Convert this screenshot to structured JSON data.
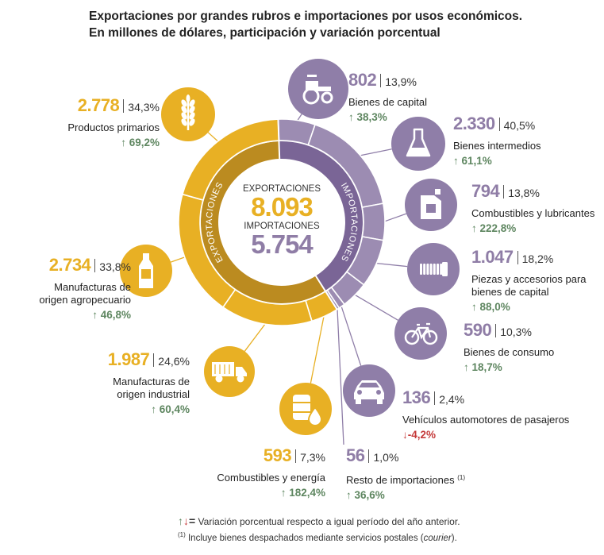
{
  "title_line1": "Exportaciones por grandes rubros e importaciones por usos económicos.",
  "title_line2": "En millones de dólares, participación y variación porcentual",
  "center": {
    "exp_label": "EXPORTACIONES",
    "exp_value": "8.093",
    "imp_label": "IMPORTACIONES",
    "imp_value": "5.754",
    "exp_ring": "EXPORTACIONES",
    "imp_ring": "IMPORTACIONES"
  },
  "colors": {
    "exports": "#e8b024",
    "exports_inner": "#bb8b20",
    "imports": "#9c8cb2",
    "imports_inner": "#7a6596",
    "icon_exp": "#e8b024",
    "icon_imp": "#8f7ea8",
    "up": "#5e8660",
    "down": "#c53a3a"
  },
  "chart_data": {
    "type": "pie",
    "title": "Exportaciones por grandes rubros e importaciones por usos económicos. En millones de dólares, participación y variación porcentual",
    "series": [
      {
        "name": "Exportaciones",
        "total": 8093,
        "items": [
          {
            "label": "Productos primarios",
            "value": 2778,
            "value_text": "2.778",
            "share_text": "34,3%",
            "variation_text": "69,2%",
            "direction": "up",
            "icon": "wheat-icon"
          },
          {
            "label": "Manufacturas de origen agropecuario",
            "value": 2734,
            "value_text": "2.734",
            "share_text": "33,8%",
            "variation_text": "46,8%",
            "direction": "up",
            "icon": "bottle-icon"
          },
          {
            "label": "Manufacturas de origen industrial",
            "value": 1987,
            "value_text": "1.987",
            "share_text": "24,6%",
            "variation_text": "60,4%",
            "direction": "up",
            "icon": "truck-icon"
          },
          {
            "label": "Combustibles y energía",
            "value": 593,
            "value_text": "593",
            "share_text": "7,3%",
            "variation_text": "182,4%",
            "direction": "up",
            "icon": "barrel-icon"
          }
        ]
      },
      {
        "name": "Importaciones",
        "total": 5754,
        "items": [
          {
            "label": "Bienes de capital",
            "value": 802,
            "value_text": "802",
            "share_text": "13,9%",
            "variation_text": "38,3%",
            "direction": "up",
            "icon": "tractor-icon"
          },
          {
            "label": "Bienes intermedios",
            "value": 2330,
            "value_text": "2.330",
            "share_text": "40,5%",
            "variation_text": "61,1%",
            "direction": "up",
            "icon": "flask-icon"
          },
          {
            "label": "Combustibles y lubricantes",
            "value": 794,
            "value_text": "794",
            "share_text": "13,8%",
            "variation_text": "222,8%",
            "direction": "up",
            "icon": "jerrycan-icon"
          },
          {
            "label": "Piezas y accesorios para bienes de capital",
            "value": 1047,
            "value_text": "1.047",
            "share_text": "18,2%",
            "variation_text": "88,0%",
            "direction": "up",
            "icon": "screw-icon"
          },
          {
            "label": "Bienes de consumo",
            "value": 590,
            "value_text": "590",
            "share_text": "10,3%",
            "variation_text": "18,7%",
            "direction": "up",
            "icon": "bicycle-icon"
          },
          {
            "label": "Vehículos automotores de pasajeros",
            "value": 136,
            "value_text": "136",
            "share_text": "2,4%",
            "variation_text": "-4,2%",
            "direction": "down",
            "icon": "car-icon"
          },
          {
            "label": "Resto de importaciones",
            "value": 56,
            "value_text": "56",
            "share_text": "1,0%",
            "variation_text": "36,6%",
            "direction": "up",
            "icon": "",
            "footnote_mark": "(1)"
          }
        ]
      }
    ]
  },
  "text": {
    "ex0_label": "Productos primarios",
    "ex1_label_1": "Manufacturas de",
    "ex1_label_2": "origen agropecuario",
    "ex2_label_1": "Manufacturas de",
    "ex2_label_2": "origen industrial",
    "ex3_label": "Combustibles y energía",
    "im0_label": "Bienes de capital",
    "im1_label": "Bienes intermedios",
    "im2_label": "Combustibles y lubricantes",
    "im3_label_1": "Piezas y accesorios para",
    "im3_label_2": "bienes de capital",
    "im4_label": "Bienes de consumo",
    "im5_label": "Vehículos automotores de pasajeros",
    "im6_label": "Resto de importaciones",
    "im6_note": "(1)"
  },
  "footer": {
    "arrows": "↑↓=",
    "legend": "Variación porcentual respecto a igual período del año anterior.",
    "note_mark": "(1)",
    "note_text": "Incluye bienes despachados mediante servicios postales (",
    "note_italic": "courier",
    "note_end": ")."
  }
}
